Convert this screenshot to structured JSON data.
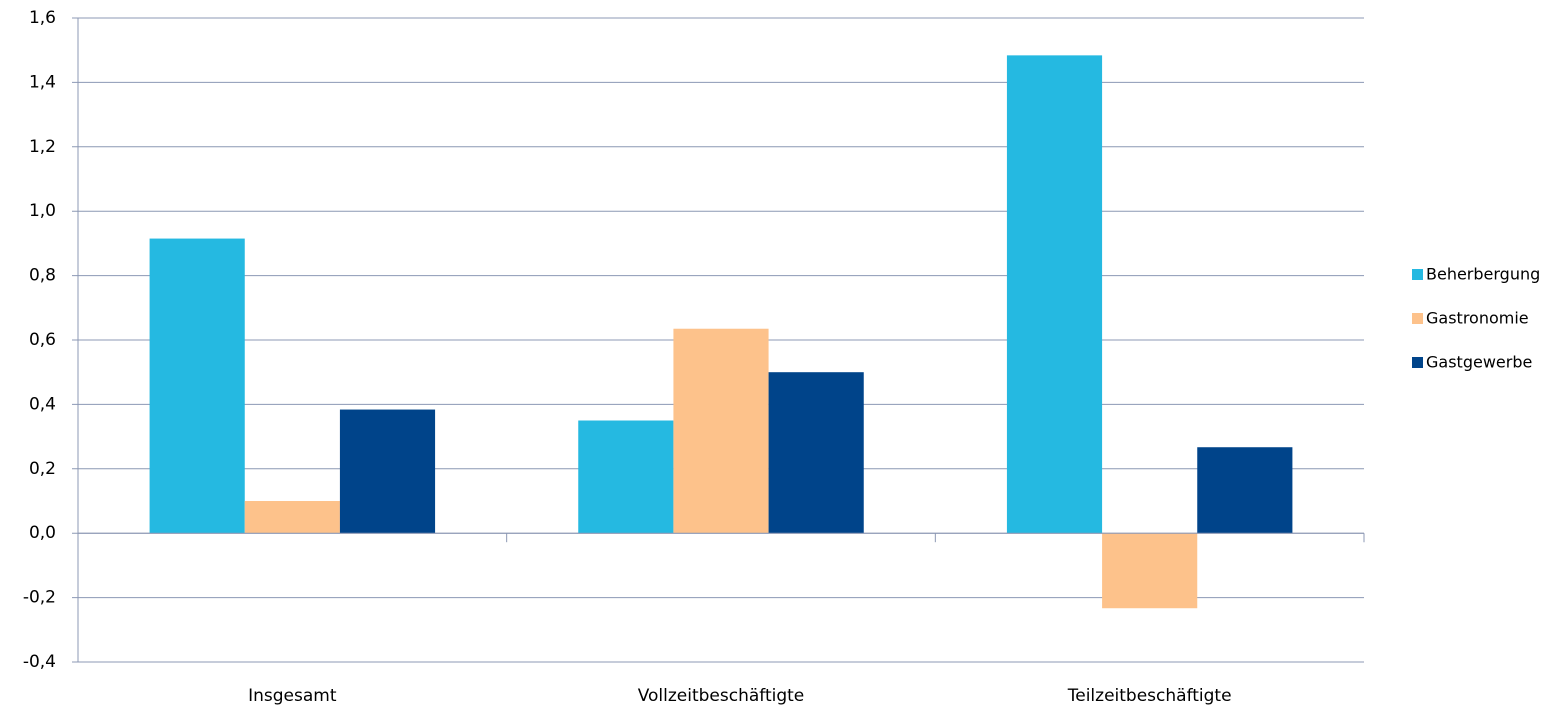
{
  "chart_data": {
    "type": "bar",
    "categories": [
      "Insgesamt",
      "Vollzeitbeschäftigte",
      "Teilzeitbeschäftigte"
    ],
    "series": [
      {
        "name": "Beherbergung",
        "color": "#25b9e1",
        "values": [
          0.915,
          0.35,
          1.484
        ]
      },
      {
        "name": "Gastronomie",
        "color": "#fdc28b",
        "values": [
          0.1,
          0.635,
          -0.233
        ]
      },
      {
        "name": "Gastgewerbe",
        "color": "#00448a",
        "values": [
          0.384,
          0.5,
          0.267
        ]
      }
    ],
    "ylim": [
      -0.4,
      1.6
    ],
    "yticks": [
      {
        "value": -0.4,
        "label": "-0,4"
      },
      {
        "value": -0.2,
        "label": "-0,2"
      },
      {
        "value": 0,
        "label": "0,0"
      },
      {
        "value": 0.2,
        "label": "0,2"
      },
      {
        "value": 0.4,
        "label": "0,4"
      },
      {
        "value": 0.6,
        "label": "0,6"
      },
      {
        "value": 0.8,
        "label": "0,8"
      },
      {
        "value": 1.0,
        "label": "1,0"
      },
      {
        "value": 1.2,
        "label": "1,2"
      },
      {
        "value": 1.4,
        "label": "1,4"
      },
      {
        "value": 1.6,
        "label": "1,6"
      }
    ],
    "grid": true,
    "legend": "right"
  }
}
